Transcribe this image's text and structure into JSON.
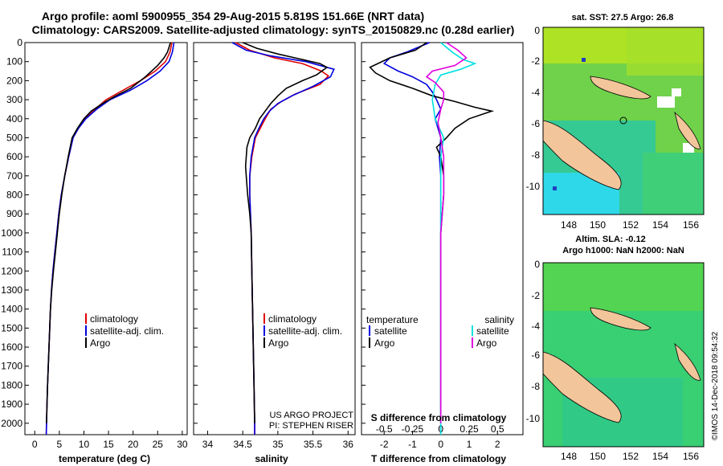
{
  "header": {
    "line1": "Argo profile: aoml 5900955_354 29-Aug-2015 5.819S 151.66E (NRT data)",
    "line2": "Climatology: CARS2009. Satellite-adjusted climatology: synTS_20150829.nc (0.28d earlier)"
  },
  "depth_ticks": [
    "0",
    "100",
    "200",
    "300",
    "400",
    "500",
    "600",
    "700",
    "800",
    "900",
    "1000",
    "1100",
    "1200",
    "1300",
    "1400",
    "1500",
    "1600",
    "1700",
    "1800",
    "1900",
    "2000"
  ],
  "panels": {
    "temperature": {
      "xlabel": "temperature (deg C)",
      "xticks": [
        "0",
        "5",
        "10",
        "15",
        "20",
        "25",
        "30"
      ],
      "legend": [
        "climatology",
        "satellite-adj. clim.",
        "Argo"
      ]
    },
    "salinity": {
      "xlabel": "salinity",
      "xticks": [
        "34",
        "34.5",
        "35",
        "35.5",
        "36"
      ],
      "legend": [
        "climatology",
        "satellite-adj. clim.",
        "Argo"
      ],
      "credit1": "US ARGO PROJECT",
      "credit2": "PI: STEPHEN RISER"
    },
    "difference": {
      "xlabel": "T difference from climatology",
      "xticks": [
        "-2",
        "-1",
        "0",
        "1",
        "2"
      ],
      "top_label": "S difference from climatology",
      "top_ticks": [
        "-0.5",
        "-0.25",
        "0",
        "0.25",
        "0.5"
      ],
      "legend_t_title": "temperature",
      "legend_s_title": "salinity",
      "legend_t": [
        "satellite",
        "Argo"
      ],
      "legend_s": [
        "satellite",
        "Argo"
      ]
    }
  },
  "maps": {
    "sst": {
      "title": "sat. SST: 27.5 Argo: 26.8",
      "yticks": [
        "-2",
        "-4",
        "-6",
        "-8",
        "-10"
      ],
      "yzero": "0",
      "xticks": [
        "148",
        "150",
        "152",
        "154",
        "156"
      ]
    },
    "sla": {
      "title1": "Altim. SLA: -0.12",
      "title2": "Argo h1000: NaN h2000: NaN",
      "yticks": [
        "-2",
        "-4",
        "-6",
        "-8",
        "-10"
      ],
      "yzero": "0",
      "xticks": [
        "148",
        "150",
        "152",
        "154",
        "156"
      ]
    }
  },
  "imos": "©IMOS 14-Dec-2018 09:54:32",
  "colors": {
    "clim": "#e00000",
    "sat": "#0000e0",
    "argo": "#000000",
    "sat_s": "#00e0e0",
    "argo_s": "#e000e0",
    "land": "#f2c59a"
  },
  "chart_data": [
    {
      "type": "line",
      "title": "temperature",
      "xlabel": "temperature (deg C)",
      "ylabel": "depth",
      "xlim": [
        -2,
        31
      ],
      "ylim": [
        2060,
        0
      ],
      "series": [
        {
          "name": "climatology",
          "color": "#e00000",
          "points": [
            [
              27.9,
              0
            ],
            [
              27.5,
              50
            ],
            [
              26.6,
              100
            ],
            [
              24.5,
              150
            ],
            [
              21.5,
              200
            ],
            [
              18,
              250
            ],
            [
              14.5,
              300
            ],
            [
              12.3,
              350
            ],
            [
              10.3,
              400
            ],
            [
              8.9,
              450
            ],
            [
              7.8,
              500
            ],
            [
              6.9,
              600
            ],
            [
              6.1,
              700
            ],
            [
              5.4,
              800
            ],
            [
              4.9,
              900
            ],
            [
              4.5,
              1000
            ],
            [
              4.1,
              1100
            ],
            [
              3.7,
              1200
            ],
            [
              3.4,
              1300
            ],
            [
              3.2,
              1400
            ],
            [
              3.05,
              1500
            ],
            [
              2.9,
              1600
            ],
            [
              2.75,
              1700
            ],
            [
              2.6,
              1800
            ],
            [
              2.5,
              1900
            ],
            [
              2.4,
              2000
            ],
            [
              2.35,
              2060
            ]
          ]
        },
        {
          "name": "satellite-adj. clim.",
          "color": "#0000e0",
          "points": [
            [
              28.3,
              0
            ],
            [
              28,
              50
            ],
            [
              27.3,
              100
            ],
            [
              25.5,
              150
            ],
            [
              22.8,
              200
            ],
            [
              19.5,
              250
            ],
            [
              15.3,
              300
            ],
            [
              12.6,
              350
            ],
            [
              10.4,
              400
            ],
            [
              8.9,
              450
            ],
            [
              7.8,
              500
            ],
            [
              6.9,
              600
            ],
            [
              6.1,
              700
            ],
            [
              5.4,
              800
            ],
            [
              4.9,
              900
            ],
            [
              4.5,
              1000
            ],
            [
              4.1,
              1100
            ],
            [
              3.7,
              1200
            ],
            [
              3.4,
              1300
            ],
            [
              3.2,
              1400
            ],
            [
              3.05,
              1500
            ],
            [
              2.9,
              1600
            ],
            [
              2.75,
              1700
            ],
            [
              2.6,
              1800
            ],
            [
              2.5,
              1900
            ],
            [
              2.4,
              2000
            ],
            [
              2.35,
              2060
            ]
          ]
        },
        {
          "name": "Argo",
          "color": "#000000",
          "points": [
            [
              27.6,
              0
            ],
            [
              27,
              50
            ],
            [
              26.3,
              80
            ],
            [
              25,
              120
            ],
            [
              22.5,
              180
            ],
            [
              19.5,
              240
            ],
            [
              16.5,
              280
            ],
            [
              13.8,
              320
            ],
            [
              11.5,
              360
            ],
            [
              10,
              400
            ],
            [
              8.7,
              450
            ],
            [
              7.6,
              500
            ],
            [
              6.8,
              600
            ],
            [
              6.1,
              700
            ],
            [
              5.5,
              800
            ],
            [
              5,
              900
            ],
            [
              4.6,
              1000
            ],
            [
              4.2,
              1100
            ],
            [
              3.8,
              1200
            ],
            [
              3.45,
              1300
            ],
            [
              3.2,
              1400
            ],
            [
              3.05,
              1500
            ],
            [
              2.9,
              1600
            ],
            [
              2.75,
              1700
            ],
            [
              2.6,
              1800
            ],
            [
              2.5,
              1900
            ],
            [
              2.4,
              2000
            ]
          ]
        }
      ]
    },
    {
      "type": "line",
      "title": "salinity",
      "xlabel": "salinity",
      "ylabel": "depth",
      "xlim": [
        33.8,
        36.1
      ],
      "ylim": [
        2060,
        0
      ],
      "series": [
        {
          "name": "climatology",
          "color": "#e00000",
          "points": [
            [
              34.4,
              0
            ],
            [
              34.6,
              40
            ],
            [
              34.95,
              80
            ],
            [
              35.35,
              110
            ],
            [
              35.62,
              150
            ],
            [
              35.72,
              175
            ],
            [
              35.6,
              220
            ],
            [
              35.25,
              270
            ],
            [
              35.05,
              310
            ],
            [
              34.9,
              350
            ],
            [
              34.82,
              400
            ],
            [
              34.75,
              450
            ],
            [
              34.68,
              500
            ],
            [
              34.63,
              600
            ],
            [
              34.6,
              700
            ],
            [
              34.6,
              800
            ],
            [
              34.61,
              900
            ],
            [
              34.62,
              1000
            ],
            [
              34.63,
              1200
            ],
            [
              34.64,
              1400
            ],
            [
              34.65,
              1600
            ],
            [
              34.66,
              1800
            ],
            [
              34.67,
              2000
            ],
            [
              34.67,
              2060
            ]
          ]
        },
        {
          "name": "satellite-adj. clim.",
          "color": "#0000e0",
          "points": [
            [
              34.35,
              0
            ],
            [
              34.55,
              40
            ],
            [
              34.9,
              70
            ],
            [
              35.4,
              100
            ],
            [
              35.8,
              140
            ],
            [
              35.75,
              180
            ],
            [
              35.5,
              230
            ],
            [
              35.2,
              280
            ],
            [
              35.0,
              320
            ],
            [
              34.88,
              360
            ],
            [
              34.8,
              400
            ],
            [
              34.73,
              450
            ],
            [
              34.67,
              500
            ],
            [
              34.62,
              600
            ],
            [
              34.6,
              700
            ],
            [
              34.6,
              800
            ],
            [
              34.61,
              900
            ],
            [
              34.62,
              1000
            ],
            [
              34.63,
              1200
            ],
            [
              34.64,
              1400
            ],
            [
              34.65,
              1600
            ],
            [
              34.66,
              1800
            ],
            [
              34.67,
              2000
            ],
            [
              34.67,
              2060
            ]
          ]
        },
        {
          "name": "Argo",
          "color": "#000000",
          "points": [
            [
              34.5,
              0
            ],
            [
              34.7,
              30
            ],
            [
              35.0,
              60
            ],
            [
              35.3,
              85
            ],
            [
              35.6,
              110
            ],
            [
              35.7,
              130
            ],
            [
              35.55,
              170
            ],
            [
              35.35,
              200
            ],
            [
              35.12,
              240
            ],
            [
              35.0,
              280
            ],
            [
              34.9,
              320
            ],
            [
              34.82,
              360
            ],
            [
              34.74,
              400
            ],
            [
              34.68,
              450
            ],
            [
              34.6,
              500
            ],
            [
              34.56,
              550
            ],
            [
              34.54,
              650
            ],
            [
              34.55,
              700
            ],
            [
              34.57,
              800
            ],
            [
              34.6,
              900
            ],
            [
              34.62,
              1000
            ],
            [
              34.63,
              1200
            ],
            [
              34.64,
              1400
            ],
            [
              34.65,
              1600
            ],
            [
              34.66,
              1800
            ],
            [
              34.67,
              2000
            ]
          ]
        }
      ]
    },
    {
      "type": "line",
      "title": "difference from climatology",
      "xlabel": "T difference from climatology",
      "ylabel": "depth",
      "xlim": [
        -2.8,
        2.9
      ],
      "ylim": [
        2060,
        0
      ],
      "series": [
        {
          "name": "temperature satellite",
          "color": "#0000e0",
          "points": [
            [
              -0.4,
              0
            ],
            [
              -1.2,
              50
            ],
            [
              -1.8,
              80
            ],
            [
              -2.0,
              110
            ],
            [
              -1.5,
              150
            ],
            [
              -1.0,
              180
            ],
            [
              -0.5,
              220
            ],
            [
              -0.3,
              260
            ],
            [
              -0.15,
              300
            ],
            [
              0.0,
              350
            ],
            [
              -0.2,
              400
            ],
            [
              -0.1,
              450
            ],
            [
              0.0,
              500
            ],
            [
              -0.05,
              600
            ],
            [
              0.0,
              700
            ],
            [
              0.0,
              800
            ],
            [
              0.0,
              1000
            ],
            [
              0.0,
              1500
            ],
            [
              0.0,
              2060
            ]
          ]
        },
        {
          "name": "temperature Argo",
          "color": "#000000",
          "points": [
            [
              -0.5,
              0
            ],
            [
              -0.9,
              40
            ],
            [
              -1.8,
              80
            ],
            [
              -2.5,
              130
            ],
            [
              -2.3,
              160
            ],
            [
              -1.8,
              200
            ],
            [
              -1.0,
              240
            ],
            [
              -0.3,
              280
            ],
            [
              0.5,
              310
            ],
            [
              1.2,
              340
            ],
            [
              1.8,
              360
            ],
            [
              1.0,
              400
            ],
            [
              0.5,
              450
            ],
            [
              0.2,
              500
            ],
            [
              -0.15,
              550
            ],
            [
              0.0,
              600
            ],
            [
              0.1,
              700
            ],
            [
              0.1,
              800
            ],
            [
              0.05,
              900
            ],
            [
              0.0,
              1000
            ],
            [
              0.0,
              1500
            ],
            [
              0.0,
              2000
            ]
          ]
        },
        {
          "name": "salinity satellite",
          "color": "#00e0e0",
          "points": [
            [
              0.0,
              0
            ],
            [
              0.4,
              50
            ],
            [
              0.8,
              90
            ],
            [
              1.2,
              110
            ],
            [
              0.7,
              140
            ],
            [
              0.0,
              170
            ],
            [
              -0.2,
              220
            ],
            [
              -0.3,
              300
            ],
            [
              -0.2,
              400
            ],
            [
              0.1,
              500
            ],
            [
              0.0,
              600
            ],
            [
              0.0,
              800
            ],
            [
              0.0,
              1500
            ],
            [
              0.0,
              2060
            ]
          ]
        },
        {
          "name": "salinity Argo",
          "color": "#e000e0",
          "points": [
            [
              0.2,
              0
            ],
            [
              0.6,
              40
            ],
            [
              0.9,
              80
            ],
            [
              0.5,
              120
            ],
            [
              -0.3,
              150
            ],
            [
              -0.5,
              180
            ],
            [
              -0.2,
              210
            ],
            [
              0.1,
              260
            ],
            [
              0.1,
              300
            ],
            [
              0.0,
              350
            ],
            [
              -0.1,
              420
            ],
            [
              0.0,
              500
            ],
            [
              0.1,
              600
            ],
            [
              0.1,
              700
            ],
            [
              0.1,
              800
            ],
            [
              0.0,
              1000
            ],
            [
              0.0,
              1500
            ],
            [
              0.0,
              2000
            ]
          ]
        }
      ]
    }
  ]
}
